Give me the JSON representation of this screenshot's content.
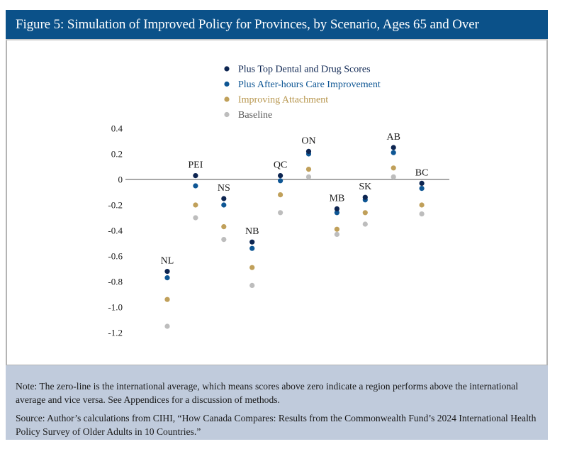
{
  "figure": {
    "title": "Figure 5: Simulation of Improved Policy for Provinces, by Scenario, Ages 65 and Over",
    "note": "Note: The zero-line is the international average, which means scores above zero indicate a region performs above the international average and vice versa. See Appendices for a discussion of methods.",
    "source": "Source: Author’s calculations from CIHI, “How Canada Compares: Results from the Commonwealth Fund’s 2024 International Health Policy Survey of Older Adults in 10 Countries.”",
    "colors": {
      "title_bar": "#0b5189",
      "note_box": "#c0cbdc"
    }
  },
  "chart_data": {
    "type": "scatter",
    "title": "Figure 5: Simulation of Improved Policy for Provinces, by Scenario, Ages 65 and Over",
    "xlabel": "",
    "ylabel": "",
    "ylim": [
      -1.2,
      0.4
    ],
    "yticks": [
      0.4,
      0.2,
      0,
      -0.2,
      -0.4,
      -0.6,
      -0.8,
      -1.0,
      -1.2
    ],
    "ytick_labels": [
      "0.4",
      "0.2",
      "0",
      "-0.2",
      "-0.4",
      "-0.6",
      "-0.8",
      "-1.0",
      "-1.2"
    ],
    "zero_line": true,
    "grid": false,
    "legend_position": "top-center",
    "categories": [
      "NL",
      "PEI",
      "NS",
      "NB",
      "QC",
      "ON",
      "MB",
      "SK",
      "AB",
      "BC"
    ],
    "series": [
      {
        "name": "Plus Top Dental and Drug Scores",
        "color": "#0d2551",
        "values": [
          -0.72,
          0.03,
          -0.15,
          -0.49,
          0.03,
          0.22,
          -0.23,
          -0.14,
          0.25,
          -0.03
        ]
      },
      {
        "name": "Plus After-hours Care Improvement",
        "color": "#0e5694",
        "values": [
          -0.77,
          -0.05,
          -0.2,
          -0.54,
          -0.01,
          0.2,
          -0.26,
          -0.16,
          0.21,
          -0.07
        ]
      },
      {
        "name": "Improving Attachment",
        "color": "#c0a05a",
        "values": [
          -0.94,
          -0.2,
          -0.37,
          -0.69,
          -0.12,
          0.08,
          -0.39,
          -0.26,
          0.09,
          -0.2
        ]
      },
      {
        "name": "Baseline",
        "color": "#bdbdbd",
        "values": [
          -1.15,
          -0.3,
          -0.47,
          -0.83,
          -0.26,
          0.02,
          -0.43,
          -0.35,
          0.02,
          -0.27
        ]
      }
    ],
    "legend_text_colors": [
      "#0d2551",
      "#0e5694",
      "#b8974f",
      "#555555"
    ]
  }
}
